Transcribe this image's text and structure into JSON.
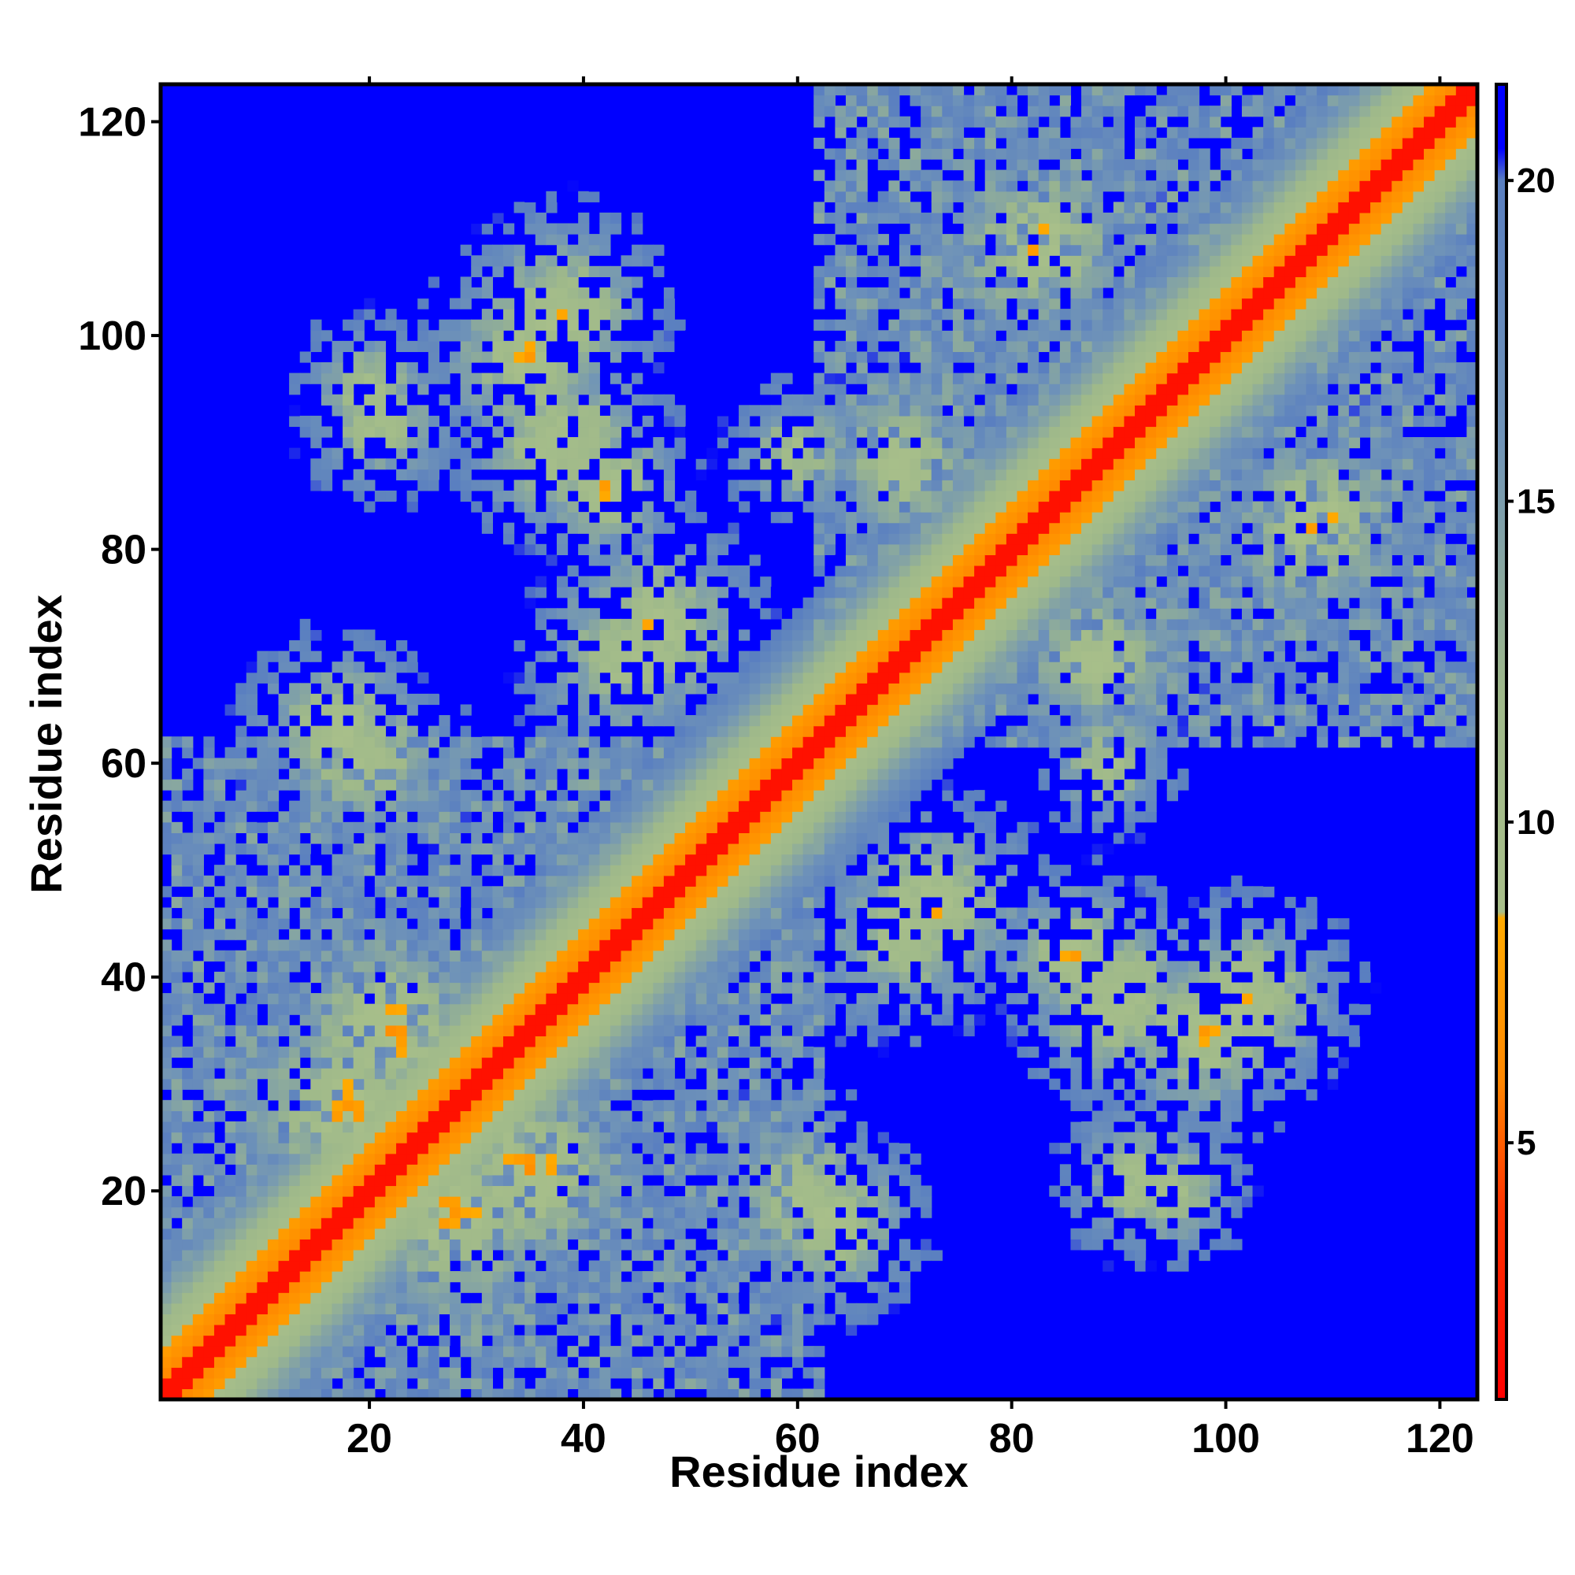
{
  "chart_data": {
    "type": "heatmap",
    "title": "",
    "xlabel": "Residue index",
    "ylabel": "Residue index",
    "n_residues": 123,
    "xlim": [
      0.5,
      123.5
    ],
    "ylim": [
      0.5,
      123.5
    ],
    "x_ticks": [
      20,
      40,
      60,
      80,
      100,
      120
    ],
    "y_ticks": [
      20,
      40,
      60,
      80,
      100,
      120
    ],
    "x_tick_labels": [
      "20",
      "40",
      "60",
      "80",
      "100",
      "120"
    ],
    "y_tick_labels": [
      "20",
      "40",
      "60",
      "80",
      "100",
      "120"
    ],
    "colorbar": {
      "range": [
        1,
        21.5
      ],
      "ticks": [
        5,
        10,
        15,
        20
      ],
      "tick_labels": [
        "5",
        "10",
        "15",
        "20"
      ],
      "stops": [
        {
          "value": 1,
          "color": "#ff0000"
        },
        {
          "value": 4,
          "color": "#ff3300"
        },
        {
          "value": 6,
          "color": "#ff8800"
        },
        {
          "value": 8.5,
          "color": "#ffaa00"
        },
        {
          "value": 8.6,
          "color": "#a8bf8a"
        },
        {
          "value": 12,
          "color": "#9fb98a"
        },
        {
          "value": 16,
          "color": "#6f93b8"
        },
        {
          "value": 20,
          "color": "#5a7fc0"
        },
        {
          "value": 20.5,
          "color": "#0000ff"
        },
        {
          "value": 21.5,
          "color": "#0000ff"
        }
      ]
    },
    "background_value": 21.5,
    "colors": {
      "background": "#0000ff",
      "diagonal": "#ff0000",
      "near_contact": "#ff8800",
      "mid": "#a8bf8a",
      "far": "#6f93b8"
    },
    "domains": [
      {
        "i_range": [
          1,
          62
        ],
        "j_range": [
          1,
          62
        ],
        "distance": 11
      },
      {
        "i_range": [
          62,
          123
        ],
        "j_range": [
          62,
          123
        ],
        "distance": 11
      }
    ],
    "contact_clusters": [
      {
        "center_i": 20,
        "center_j": 95,
        "radius": 8,
        "min_distance": 7
      },
      {
        "center_i": 35,
        "center_j": 98,
        "radius": 11,
        "min_distance": 6
      },
      {
        "center_i": 42,
        "center_j": 86,
        "radius": 9,
        "min_distance": 6
      },
      {
        "center_i": 60,
        "center_j": 89,
        "radius": 8,
        "min_distance": 7
      },
      {
        "center_i": 83,
        "center_j": 109,
        "radius": 11,
        "min_distance": 6
      },
      {
        "center_i": 17,
        "center_j": 63,
        "radius": 10,
        "min_distance": 6
      },
      {
        "center_i": 44,
        "center_j": 70,
        "radius": 12,
        "min_distance": 7
      },
      {
        "center_i": 22,
        "center_j": 35,
        "radius": 12,
        "min_distance": 5
      },
      {
        "center_i": 28,
        "center_j": 18,
        "radius": 12,
        "min_distance": 5
      },
      {
        "center_i": 60,
        "center_j": 20,
        "radius": 11,
        "min_distance": 7
      },
      {
        "center_i": 73,
        "center_j": 47,
        "radius": 11,
        "min_distance": 6
      },
      {
        "center_i": 90,
        "center_j": 38,
        "radius": 11,
        "min_distance": 6
      },
      {
        "center_i": 102,
        "center_j": 38,
        "radius": 11,
        "min_distance": 6
      },
      {
        "center_i": 92,
        "center_j": 21,
        "radius": 9,
        "min_distance": 7
      },
      {
        "center_i": 88,
        "center_j": 70,
        "radius": 10,
        "min_distance": 6
      },
      {
        "center_i": 108,
        "center_j": 82,
        "radius": 11,
        "min_distance": 6
      }
    ]
  }
}
